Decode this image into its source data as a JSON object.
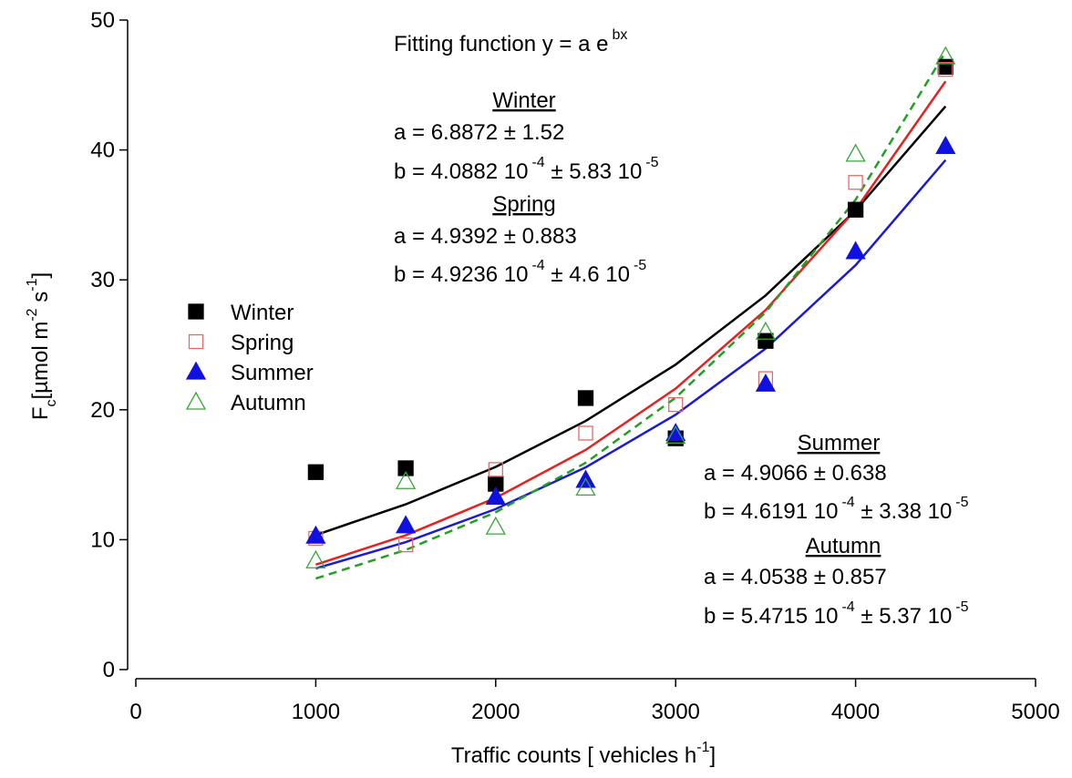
{
  "chart_data": {
    "type": "scatter",
    "x": [
      1000,
      1500,
      2000,
      2500,
      3000,
      3500,
      4000,
      4500
    ],
    "xlim": [
      0,
      5000
    ],
    "xticks": [
      0,
      1000,
      2000,
      3000,
      4000,
      5000
    ],
    "ylim": [
      0,
      50
    ],
    "yticks": [
      0,
      10,
      20,
      30,
      40,
      50
    ],
    "xlabel": [
      {
        "text": "Traffic counts [ vehicles h"
      },
      {
        "text": "-1",
        "shift": "sup"
      },
      {
        "text": "]"
      }
    ],
    "ylabel": [
      {
        "text": "F"
      },
      {
        "text": "c",
        "shift": "sub"
      },
      {
        "text": "[µmol m"
      },
      {
        "text": "-2",
        "shift": "sup"
      },
      {
        "text": " s"
      },
      {
        "text": "-1",
        "shift": "sup"
      },
      {
        "text": "]"
      }
    ],
    "legend": "left",
    "series": [
      {
        "name": "Winter",
        "color": "#000000",
        "marker": "square",
        "filled": true,
        "fit_color": "#000000",
        "fit_dash": false,
        "values": [
          15.2,
          15.5,
          14.3,
          20.9,
          17.8,
          25.3,
          35.4,
          46.4
        ],
        "fit_values": [
          10.36,
          12.72,
          15.6,
          19.14,
          23.48,
          28.8,
          35.34,
          43.36
        ]
      },
      {
        "name": "Spring",
        "color": "#e46a6a",
        "marker": "square",
        "filled": false,
        "fit_color": "#e8201e",
        "fit_dash": false,
        "values": [
          10.1,
          9.6,
          15.4,
          18.2,
          20.4,
          22.4,
          37.5,
          46.2
        ],
        "fit_values": [
          8.08,
          10.34,
          13.22,
          16.91,
          21.63,
          27.68,
          35.4,
          45.28
        ]
      },
      {
        "name": "Summer",
        "color": "#1010e0",
        "marker": "triangle",
        "filled": true,
        "fit_color": "#1a1ad8",
        "fit_dash": false,
        "values": [
          10.3,
          11.1,
          13.3,
          14.6,
          18.2,
          22.0,
          32.2,
          40.3
        ],
        "fit_values": [
          7.79,
          9.81,
          12.36,
          15.57,
          19.62,
          24.71,
          31.13,
          39.22
        ]
      },
      {
        "name": "Autumn",
        "color": "#3aa63a",
        "marker": "triangle",
        "filled": false,
        "fit_color": "#22a022",
        "fit_dash": true,
        "values": [
          8.4,
          14.5,
          11.0,
          14.0,
          18.0,
          26.0,
          39.7,
          47.2
        ],
        "fit_values": [
          7.01,
          9.21,
          12.11,
          15.92,
          20.93,
          27.51,
          36.17,
          47.55
        ]
      }
    ],
    "annotations": [
      {
        "color": "#000000",
        "lines": [
          [
            "Fitting function y = a e",
            "bx"
          ]
        ]
      },
      {
        "title": "Winter",
        "color": "#000000",
        "lines": [
          [
            "a = 6.8872 ± 1.52"
          ],
          [
            "b = 4.0882 10",
            "-4",
            " ± 5.83 10",
            "-5"
          ]
        ]
      },
      {
        "title": "Spring",
        "color": "#e8201e",
        "lines": [
          [
            "a = 4.9392 ± 0.883"
          ],
          [
            "b = 4.9236 10",
            "-4",
            " ± 4.6 10",
            "-5"
          ]
        ]
      },
      {
        "title": "Summer",
        "color": "#2255dd",
        "lines": [
          [
            "a = 4.9066 ± 0.638"
          ],
          [
            "b = 4.6191 10",
            "-4",
            " ± 3.38 10",
            "-5"
          ]
        ]
      },
      {
        "title": "Autumn",
        "color": "#22a022",
        "lines": [
          [
            "a = 4.0538 ± 0.857"
          ],
          [
            "b = 5.4715 10",
            "-4",
            " ± 5.37 10",
            "-5"
          ]
        ]
      }
    ]
  }
}
